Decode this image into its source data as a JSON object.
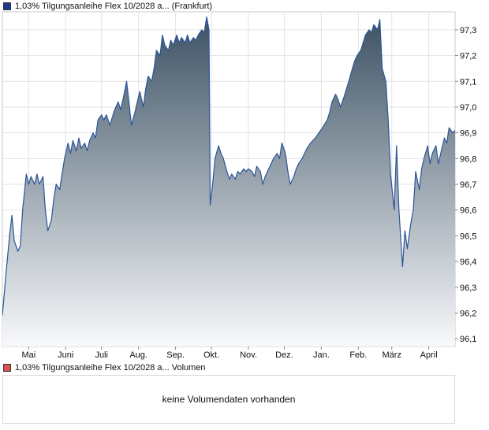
{
  "legend_price": {
    "label": "1,03% Tilgungsanleihe Flex 10/2028 a... (Frankfurt)",
    "color": "#1f3a8c"
  },
  "legend_volume": {
    "label": "1,03% Tilgungsanleihe Flex 10/2028 a... Volumen",
    "color": "#d9534f"
  },
  "volume_message": "keine Volumendaten vorhanden",
  "chart_data": {
    "type": "area",
    "y_tick_labels": [
      "96,1",
      "96,2",
      "96,3",
      "96,4",
      "96,5",
      "96,6",
      "96,7",
      "96,8",
      "96,9",
      "97,0",
      "97,1",
      "97,2",
      "97,3"
    ],
    "y_ticks": [
      96.1,
      96.2,
      96.3,
      96.4,
      96.5,
      96.6,
      96.7,
      96.8,
      96.9,
      97.0,
      97.1,
      97.2,
      97.3
    ],
    "ylim": [
      96.07,
      97.37
    ],
    "x_tick_labels": [
      "Mai",
      "Juni",
      "Juli",
      "Aug.",
      "Sep.",
      "Okt.",
      "Nov.",
      "Dez.",
      "Jan.",
      "Feb.",
      "März",
      "April"
    ],
    "x_ticks": [
      "2024-05-01",
      "2024-06-01",
      "2024-07-01",
      "2024-08-01",
      "2024-09-01",
      "2024-10-01",
      "2024-11-01",
      "2024-12-01",
      "2025-01-01",
      "2025-02-01",
      "2025-03-01",
      "2025-04-01"
    ],
    "xlim": [
      "2024-04-09",
      "2025-04-23"
    ],
    "grid": true,
    "line_color": "#2a5599",
    "fill_top_color": "#3d5264",
    "fill_bottom_color": "#f8f9fb",
    "series": [
      {
        "values": [
          [
            "2024-04-09",
            96.19
          ],
          [
            "2024-04-12",
            96.35
          ],
          [
            "2024-04-15",
            96.5
          ],
          [
            "2024-04-17",
            96.58
          ],
          [
            "2024-04-19",
            96.48
          ],
          [
            "2024-04-22",
            96.44
          ],
          [
            "2024-04-24",
            96.46
          ],
          [
            "2024-04-26",
            96.6
          ],
          [
            "2024-04-29",
            96.74
          ],
          [
            "2024-05-01",
            96.7
          ],
          [
            "2024-05-03",
            96.73
          ],
          [
            "2024-05-06",
            96.7
          ],
          [
            "2024-05-08",
            96.74
          ],
          [
            "2024-05-10",
            96.7
          ],
          [
            "2024-05-13",
            96.73
          ],
          [
            "2024-05-15",
            96.6
          ],
          [
            "2024-05-17",
            96.52
          ],
          [
            "2024-05-20",
            96.56
          ],
          [
            "2024-05-22",
            96.64
          ],
          [
            "2024-05-24",
            96.7
          ],
          [
            "2024-05-27",
            96.68
          ],
          [
            "2024-05-29",
            96.74
          ],
          [
            "2024-05-31",
            96.8
          ],
          [
            "2024-06-03",
            96.86
          ],
          [
            "2024-06-05",
            96.82
          ],
          [
            "2024-06-07",
            96.87
          ],
          [
            "2024-06-10",
            96.83
          ],
          [
            "2024-06-12",
            96.88
          ],
          [
            "2024-06-14",
            96.84
          ],
          [
            "2024-06-17",
            96.86
          ],
          [
            "2024-06-19",
            96.83
          ],
          [
            "2024-06-21",
            96.87
          ],
          [
            "2024-06-24",
            96.9
          ],
          [
            "2024-06-26",
            96.88
          ],
          [
            "2024-06-28",
            96.95
          ],
          [
            "2024-07-01",
            96.97
          ],
          [
            "2024-07-03",
            96.95
          ],
          [
            "2024-07-05",
            96.97
          ],
          [
            "2024-07-08",
            96.93
          ],
          [
            "2024-07-10",
            96.96
          ],
          [
            "2024-07-12",
            96.99
          ],
          [
            "2024-07-15",
            97.02
          ],
          [
            "2024-07-17",
            96.99
          ],
          [
            "2024-07-19",
            97.03
          ],
          [
            "2024-07-22",
            97.1
          ],
          [
            "2024-07-24",
            97.02
          ],
          [
            "2024-07-26",
            96.93
          ],
          [
            "2024-07-29",
            96.98
          ],
          [
            "2024-07-31",
            97.02
          ],
          [
            "2024-08-02",
            97.06
          ],
          [
            "2024-08-05",
            97.0
          ],
          [
            "2024-08-07",
            97.07
          ],
          [
            "2024-08-09",
            97.12
          ],
          [
            "2024-08-12",
            97.1
          ],
          [
            "2024-08-14",
            97.15
          ],
          [
            "2024-08-16",
            97.22
          ],
          [
            "2024-08-19",
            97.2
          ],
          [
            "2024-08-21",
            97.28
          ],
          [
            "2024-08-23",
            97.24
          ],
          [
            "2024-08-26",
            97.22
          ],
          [
            "2024-08-28",
            97.26
          ],
          [
            "2024-08-30",
            97.24
          ],
          [
            "2024-09-02",
            97.28
          ],
          [
            "2024-09-04",
            97.25
          ],
          [
            "2024-09-06",
            97.27
          ],
          [
            "2024-09-09",
            97.25
          ],
          [
            "2024-09-11",
            97.28
          ],
          [
            "2024-09-13",
            97.25
          ],
          [
            "2024-09-16",
            97.27
          ],
          [
            "2024-09-18",
            97.26
          ],
          [
            "2024-09-20",
            97.28
          ],
          [
            "2024-09-23",
            97.3
          ],
          [
            "2024-09-25",
            97.29
          ],
          [
            "2024-09-27",
            97.35
          ],
          [
            "2024-09-29",
            97.3
          ],
          [
            "2024-09-30",
            96.62
          ],
          [
            "2024-10-02",
            96.7
          ],
          [
            "2024-10-04",
            96.8
          ],
          [
            "2024-10-07",
            96.85
          ],
          [
            "2024-10-09",
            96.82
          ],
          [
            "2024-10-11",
            96.8
          ],
          [
            "2024-10-14",
            96.75
          ],
          [
            "2024-10-16",
            96.72
          ],
          [
            "2024-10-18",
            96.74
          ],
          [
            "2024-10-21",
            96.72
          ],
          [
            "2024-10-23",
            96.75
          ],
          [
            "2024-10-25",
            96.74
          ],
          [
            "2024-10-28",
            96.76
          ],
          [
            "2024-10-30",
            96.75
          ],
          [
            "2024-11-01",
            96.76
          ],
          [
            "2024-11-04",
            96.75
          ],
          [
            "2024-11-06",
            96.73
          ],
          [
            "2024-11-08",
            96.77
          ],
          [
            "2024-11-11",
            96.75
          ],
          [
            "2024-11-13",
            96.7
          ],
          [
            "2024-11-15",
            96.73
          ],
          [
            "2024-11-18",
            96.76
          ],
          [
            "2024-11-20",
            96.78
          ],
          [
            "2024-11-22",
            96.8
          ],
          [
            "2024-11-25",
            96.82
          ],
          [
            "2024-11-27",
            96.8
          ],
          [
            "2024-11-29",
            96.86
          ],
          [
            "2024-12-02",
            96.82
          ],
          [
            "2024-12-04",
            96.75
          ],
          [
            "2024-12-06",
            96.7
          ],
          [
            "2024-12-09",
            96.73
          ],
          [
            "2024-12-11",
            96.76
          ],
          [
            "2024-12-13",
            96.78
          ],
          [
            "2024-12-16",
            96.8
          ],
          [
            "2024-12-18",
            96.82
          ],
          [
            "2024-12-20",
            96.84
          ],
          [
            "2024-12-23",
            96.86
          ],
          [
            "2024-12-27",
            96.88
          ],
          [
            "2024-12-30",
            96.9
          ],
          [
            "2025-01-02",
            96.92
          ],
          [
            "2025-01-06",
            96.95
          ],
          [
            "2025-01-08",
            96.98
          ],
          [
            "2025-01-10",
            97.02
          ],
          [
            "2025-01-13",
            97.05
          ],
          [
            "2025-01-15",
            97.03
          ],
          [
            "2025-01-17",
            97.0
          ],
          [
            "2025-01-20",
            97.04
          ],
          [
            "2025-01-22",
            97.07
          ],
          [
            "2025-01-24",
            97.1
          ],
          [
            "2025-01-27",
            97.15
          ],
          [
            "2025-01-29",
            97.18
          ],
          [
            "2025-01-31",
            97.2
          ],
          [
            "2025-02-03",
            97.22
          ],
          [
            "2025-02-05",
            97.25
          ],
          [
            "2025-02-07",
            97.28
          ],
          [
            "2025-02-10",
            97.3
          ],
          [
            "2025-02-12",
            97.29
          ],
          [
            "2025-02-14",
            97.32
          ],
          [
            "2025-02-17",
            97.3
          ],
          [
            "2025-02-19",
            97.34
          ],
          [
            "2025-02-21",
            97.15
          ],
          [
            "2025-02-24",
            97.1
          ],
          [
            "2025-02-26",
            96.95
          ],
          [
            "2025-02-28",
            96.74
          ],
          [
            "2025-03-03",
            96.6
          ],
          [
            "2025-03-05",
            96.85
          ],
          [
            "2025-03-07",
            96.6
          ],
          [
            "2025-03-10",
            96.38
          ],
          [
            "2025-03-12",
            96.52
          ],
          [
            "2025-03-14",
            96.45
          ],
          [
            "2025-03-17",
            96.55
          ],
          [
            "2025-03-19",
            96.6
          ],
          [
            "2025-03-21",
            96.75
          ],
          [
            "2025-03-24",
            96.68
          ],
          [
            "2025-03-26",
            96.76
          ],
          [
            "2025-03-28",
            96.8
          ],
          [
            "2025-03-31",
            96.85
          ],
          [
            "2025-04-02",
            96.78
          ],
          [
            "2025-04-04",
            96.82
          ],
          [
            "2025-04-07",
            96.85
          ],
          [
            "2025-04-09",
            96.78
          ],
          [
            "2025-04-11",
            96.82
          ],
          [
            "2025-04-14",
            96.88
          ],
          [
            "2025-04-16",
            96.86
          ],
          [
            "2025-04-18",
            96.92
          ],
          [
            "2025-04-21",
            96.9
          ],
          [
            "2025-04-23",
            96.91
          ]
        ]
      }
    ]
  }
}
